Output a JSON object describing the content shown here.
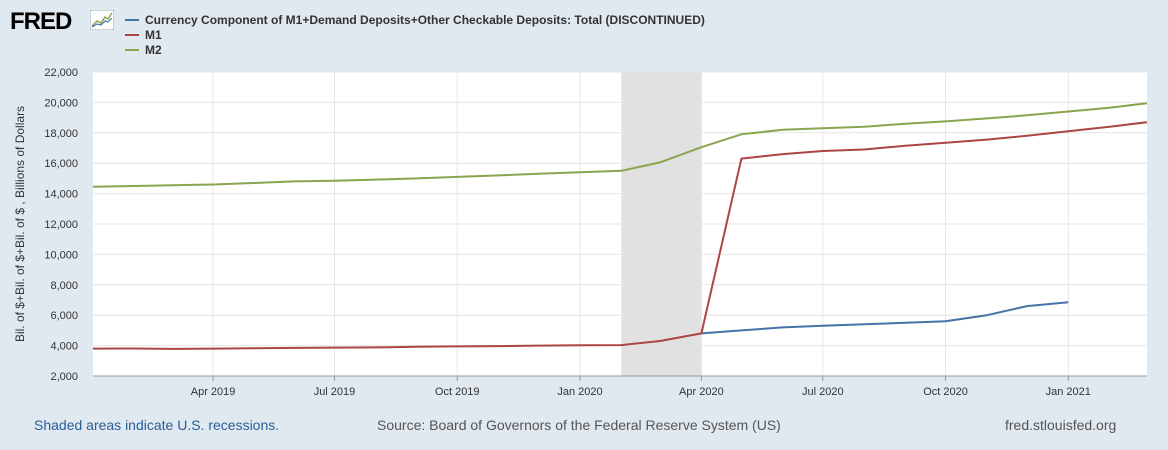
{
  "header": {
    "logo_text": "FRED",
    "logo_icon": "chart-line-icon"
  },
  "footer": {
    "recessions_note": "Shaded areas indicate U.S. recessions.",
    "source": "Source: Board of Governors of the Federal Reserve System (US)",
    "site": "fred.stlouisfed.org"
  },
  "colors": {
    "background": "#e1e9f0",
    "plot_bg": "#ffffff",
    "recession": "#e1e1e1",
    "currency": "#4572a7",
    "m1": "#aa4643",
    "m2": "#89a54e"
  },
  "chart_data": {
    "type": "line",
    "ylabel": "Bil. of $+Bil. of $+Bil. of $ , Billions of Dollars",
    "ylim": [
      2000,
      22000
    ],
    "yticks": [
      2000,
      4000,
      6000,
      8000,
      10000,
      12000,
      14000,
      16000,
      18000,
      20000,
      22000
    ],
    "ytick_labels": [
      "2,000",
      "4,000",
      "6,000",
      "8,000",
      "10,000",
      "12,000",
      "14,000",
      "16,000",
      "18,000",
      "20,000",
      "22,000"
    ],
    "xlim": [
      "2019-01-01",
      "2021-03-01"
    ],
    "xticks": [
      "2019-04-01",
      "2019-07-01",
      "2019-10-01",
      "2020-01-01",
      "2020-04-01",
      "2020-07-01",
      "2020-10-01",
      "2021-01-01"
    ],
    "xtick_labels": [
      "Apr 2019",
      "Jul 2019",
      "Oct 2019",
      "Jan 2020",
      "Apr 2020",
      "Jul 2020",
      "Oct 2020",
      "Jan 2021"
    ],
    "recession": {
      "start": "2020-02-01",
      "end": "2020-04-01"
    },
    "grid": true,
    "legend_position": "top-left",
    "x": [
      "2019-01-01",
      "2019-02-01",
      "2019-03-01",
      "2019-04-01",
      "2019-05-01",
      "2019-06-01",
      "2019-07-01",
      "2019-08-01",
      "2019-09-01",
      "2019-10-01",
      "2019-11-01",
      "2019-12-01",
      "2020-01-01",
      "2020-02-01",
      "2020-03-01",
      "2020-04-01",
      "2020-05-01",
      "2020-06-01",
      "2020-07-01",
      "2020-08-01",
      "2020-09-01",
      "2020-10-01",
      "2020-11-01",
      "2020-12-01",
      "2021-01-01",
      "2021-02-01",
      "2021-03-01"
    ],
    "series": [
      {
        "name": "Currency Component of M1+Demand Deposits+Other Checkable Deposits: Total (DISCONTINUED)",
        "color": "#4572a7",
        "values": [
          null,
          null,
          null,
          null,
          null,
          null,
          null,
          null,
          null,
          null,
          null,
          null,
          null,
          null,
          null,
          4800,
          5000,
          5200,
          5300,
          5400,
          5500,
          5600,
          6000,
          6600,
          6850,
          null,
          null
        ]
      },
      {
        "name": "M1",
        "color": "#aa4643",
        "values": [
          3800,
          3810,
          3780,
          3800,
          3820,
          3850,
          3870,
          3880,
          3920,
          3950,
          3970,
          4000,
          4020,
          4030,
          4300,
          4800,
          16300,
          16600,
          16800,
          16900,
          17150,
          17350,
          17550,
          17800,
          18100,
          18400,
          18700
        ]
      },
      {
        "name": "M2",
        "color": "#89a54e",
        "values": [
          14450,
          14500,
          14550,
          14600,
          14700,
          14800,
          14850,
          14920,
          15000,
          15100,
          15200,
          15300,
          15400,
          15500,
          16050,
          17050,
          17900,
          18200,
          18300,
          18400,
          18600,
          18750,
          18950,
          19150,
          19400,
          19650,
          19950
        ]
      }
    ]
  }
}
